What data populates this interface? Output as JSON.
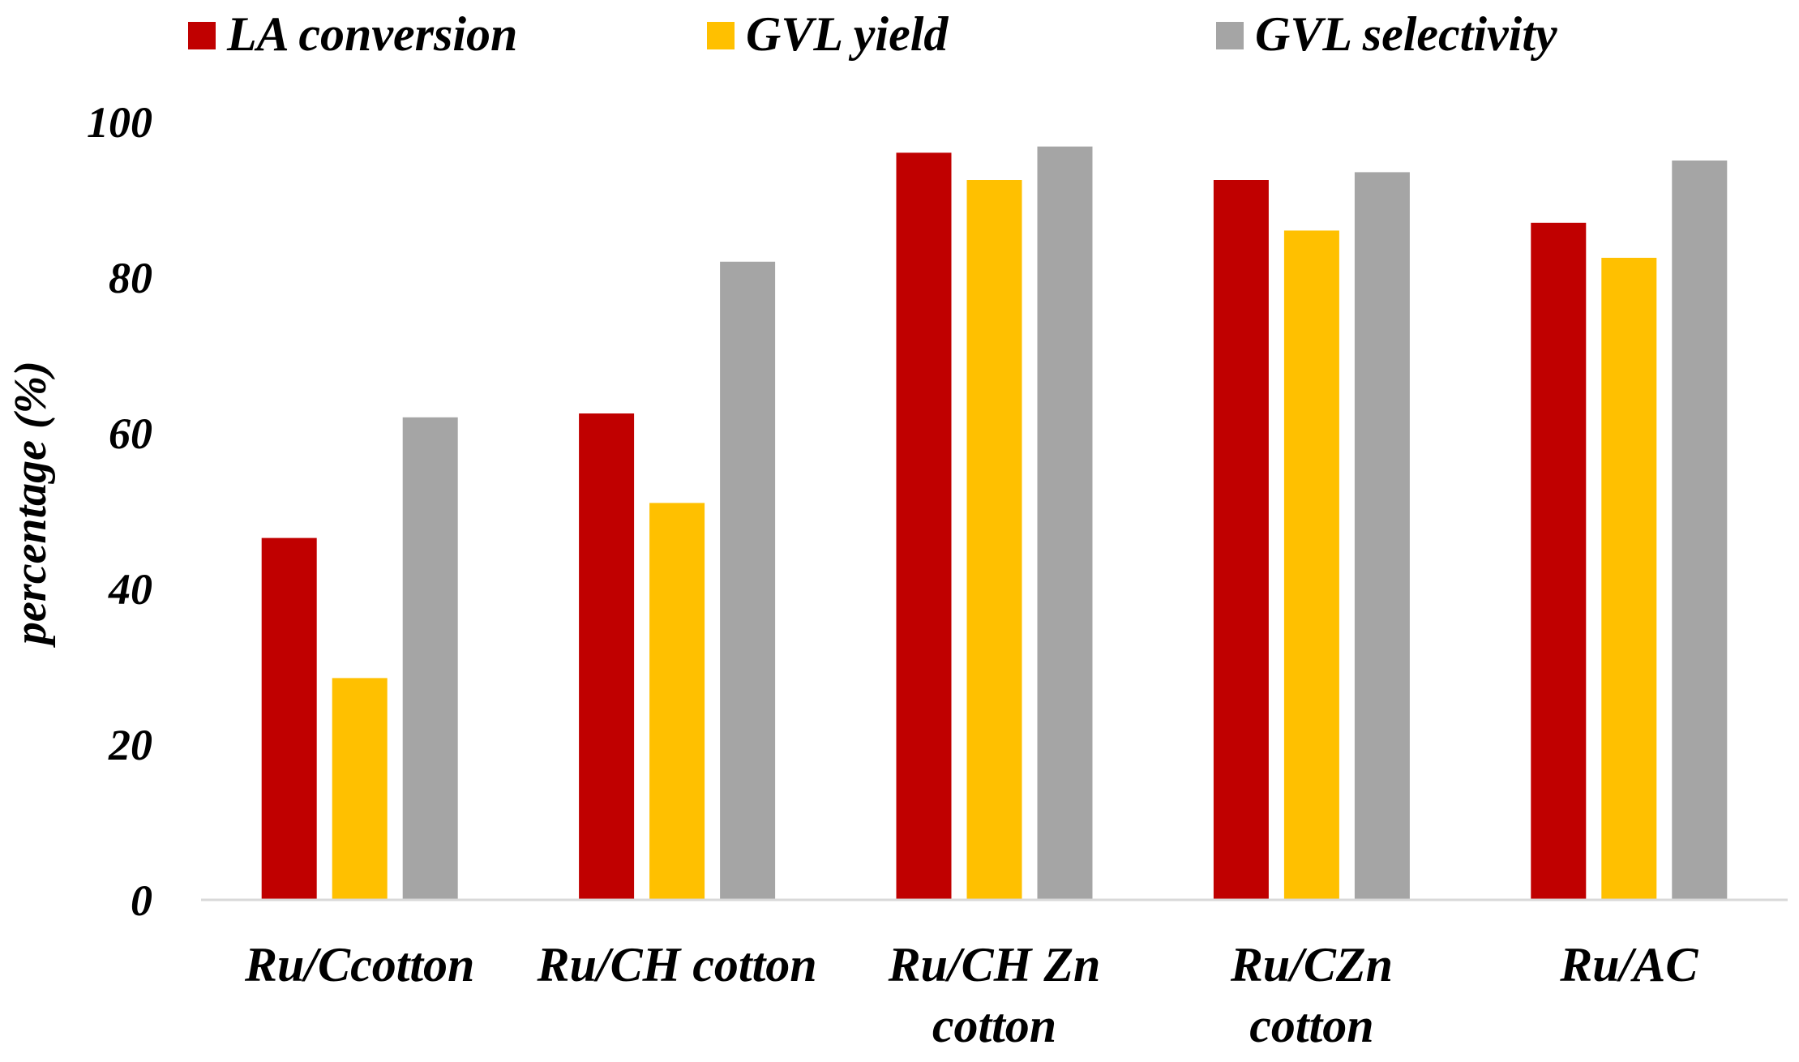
{
  "chart_data": {
    "type": "bar",
    "title": "",
    "xlabel": "",
    "ylabel": "percentage (%)",
    "ylim": [
      0,
      100
    ],
    "yticks": [
      0,
      20,
      40,
      60,
      80,
      100
    ],
    "grid": false,
    "legend_position": "top",
    "categories": [
      [
        "Ru/Ccotton"
      ],
      [
        "Ru/CH cotton"
      ],
      [
        "Ru/CH Zn",
        "cotton"
      ],
      [
        "Ru/CZn",
        "cotton"
      ],
      [
        "Ru/AC"
      ]
    ],
    "series": [
      {
        "name": "LA conversion",
        "color": "#C00000",
        "values": [
          46.5,
          62.5,
          96,
          92.5,
          87
        ]
      },
      {
        "name": "GVL yield",
        "color": "#FFC000",
        "values": [
          28.5,
          51,
          92.5,
          86,
          82.5
        ]
      },
      {
        "name": "GVL selectivity",
        "color": "#A5A5A5",
        "values": [
          62,
          82,
          96.8,
          93.5,
          95
        ]
      }
    ]
  }
}
